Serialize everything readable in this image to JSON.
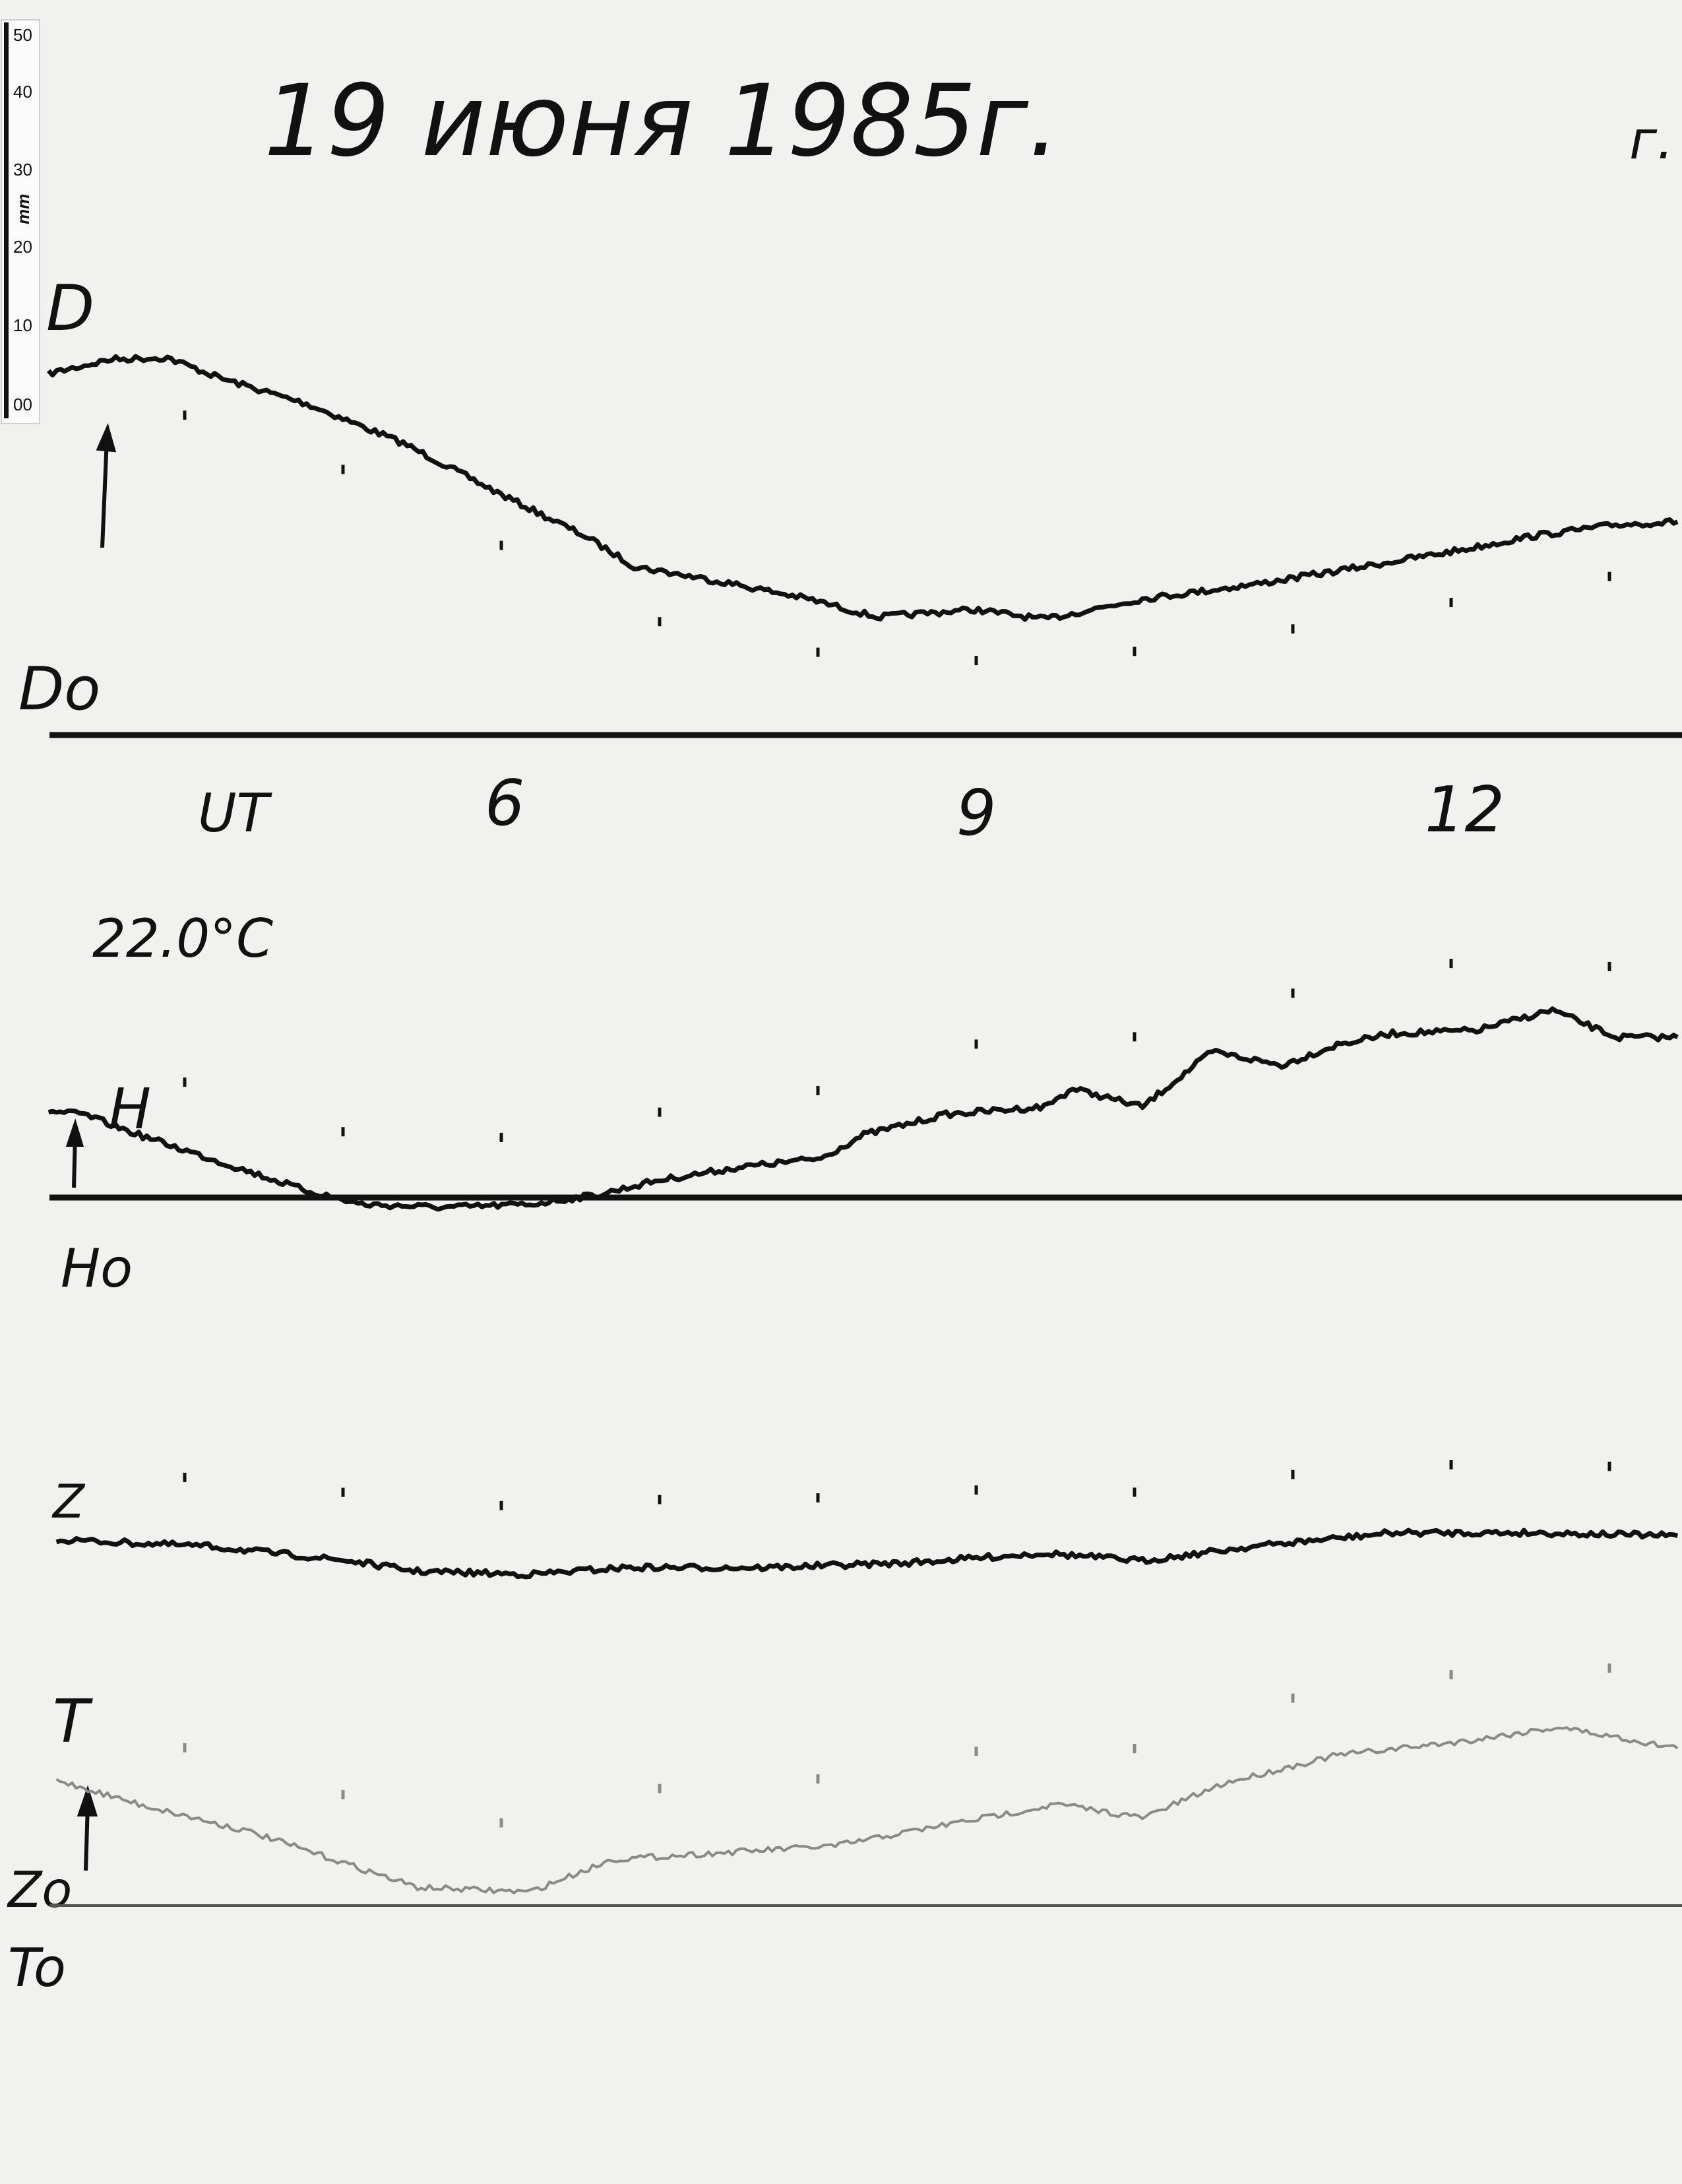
{
  "title": "19 июня 1985г.",
  "corner_mark": "г.",
  "ruler": {
    "unit": "mm",
    "ticks": [
      "50",
      "40",
      "30",
      "20",
      "10",
      "00"
    ]
  },
  "temperature": "22.0°C",
  "time_axis": {
    "label": "UT",
    "ticks": [
      "6",
      "9",
      "12"
    ]
  },
  "chart_data": {
    "type": "line",
    "xlabel": "UT",
    "x_unit": "hours",
    "y_unit": "mm",
    "xlim": [
      3.1,
      13.45
    ],
    "x_ticks": [
      6,
      9,
      12
    ],
    "grid": false,
    "series": [
      {
        "name": "D",
        "baseline_label": "Do",
        "color": "#111111",
        "x": [
          3.14,
          3.54,
          3.89,
          4.24,
          4.77,
          5.38,
          6.0,
          6.53,
          6.84,
          7.41,
          7.94,
          8.37,
          8.99,
          9.43,
          10.05,
          10.75,
          11.28,
          12.07,
          12.51,
          13.04,
          13.43
        ],
        "y": [
          47.8,
          49.7,
          49.9,
          47.1,
          43.8,
          38.6,
          31.8,
          26.3,
          22.3,
          20.2,
          18.0,
          15.6,
          16.6,
          15.3,
          18.0,
          19.9,
          21.7,
          24.5,
          26.3,
          27.8,
          28.2
        ]
      },
      {
        "name": "H",
        "baseline_label": "Ho",
        "color": "#111111",
        "x": [
          3.14,
          3.36,
          3.71,
          4.24,
          4.77,
          5.12,
          5.65,
          6.18,
          6.62,
          6.97,
          7.5,
          8.02,
          8.29,
          8.81,
          9.43,
          9.61,
          10.05,
          10.49,
          10.93,
          11.28,
          11.63,
          12.16,
          12.64,
          13.04,
          13.43
        ],
        "y": [
          11.4,
          11.0,
          8.3,
          4.6,
          0.9,
          -0.9,
          -1.3,
          -0.9,
          0.4,
          2.2,
          4.0,
          5.2,
          8.3,
          11.0,
          12.0,
          14.4,
          12.0,
          19.3,
          17.5,
          20.2,
          21.7,
          22.1,
          24.8,
          21.2,
          21.2
        ]
      },
      {
        "name": "Z",
        "baseline_label": "Zo",
        "color": "#111111",
        "x": [
          3.19,
          4.15,
          5.03,
          5.47,
          6.18,
          6.79,
          7.67,
          8.55,
          9.43,
          10.05,
          10.75,
          11.63,
          12.51,
          13.43
        ],
        "y": [
          48.4,
          47.5,
          45.6,
          44.2,
          43.8,
          44.7,
          44.7,
          45.3,
          46.6,
          45.6,
          47.5,
          49.3,
          49.3,
          48.9
        ]
      },
      {
        "name": "T",
        "baseline_label": "To",
        "color": "#8a8a8a",
        "x": [
          3.19,
          3.71,
          4.42,
          4.94,
          5.47,
          6.18,
          6.7,
          7.41,
          8.11,
          8.81,
          9.52,
          10.05,
          10.57,
          11.28,
          12.07,
          12.68,
          13.43
        ],
        "y": [
          16.6,
          13.4,
          9.7,
          6.1,
          2.4,
          1.8,
          6.1,
          7.0,
          7.9,
          10.7,
          13.4,
          11.6,
          16.2,
          19.9,
          21.7,
          23.6,
          20.8
        ]
      }
    ]
  }
}
